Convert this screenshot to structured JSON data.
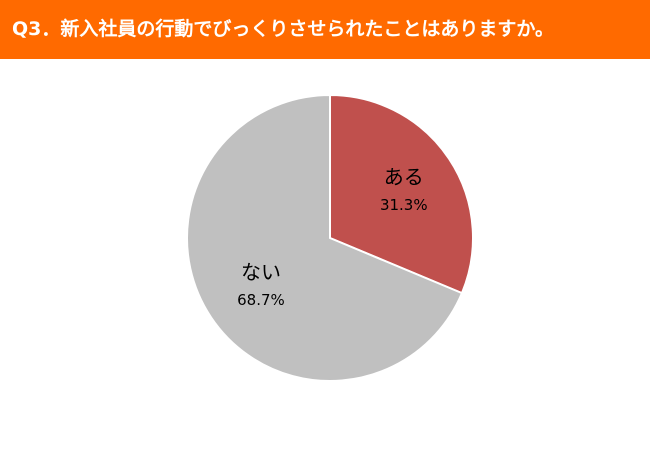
{
  "header": {
    "title": "Q3．新入社員の行動でびっくりさせられたことはありますか。"
  },
  "colors": {
    "header_bg": "#ff6a00",
    "slice_yes": "#c0504d",
    "slice_no": "#c0c0c0",
    "slice_border": "#ffffff"
  },
  "chart_data": {
    "type": "pie",
    "title": "",
    "start_angle": "top (12 o'clock), clockwise",
    "legend": "none (labels inside slices)",
    "slices": [
      {
        "label": "ある",
        "value": 31.3,
        "display": "31.3%",
        "color": "#c0504d"
      },
      {
        "label": "ない",
        "value": 68.7,
        "display": "68.7%",
        "color": "#c0c0c0"
      }
    ]
  }
}
